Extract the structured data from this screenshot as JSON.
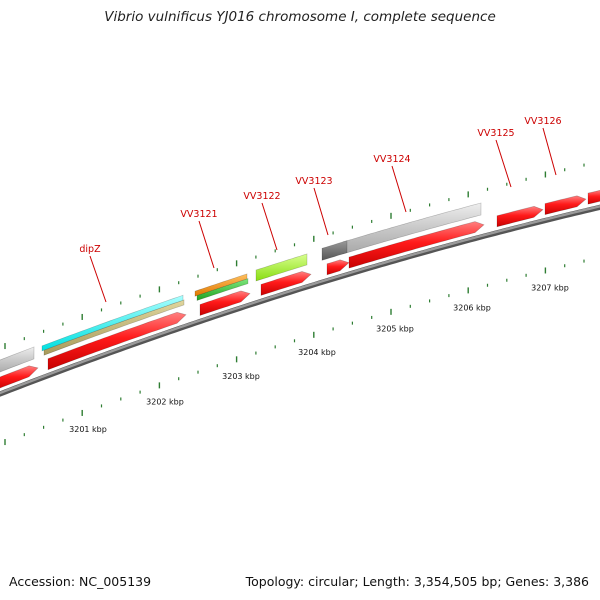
{
  "title": "Vibrio vulnificus YJ016 chromosome I, complete sequence",
  "footer": {
    "accession": "Accession: NC_005139",
    "summary": "Topology: circular; Length: 3,354,505 bp; Genes: 3,386"
  },
  "scale_labels": [
    {
      "text": "3201 kbp"
    },
    {
      "text": "3202 kbp"
    },
    {
      "text": "3203 kbp"
    },
    {
      "text": "3204 kbp"
    },
    {
      "text": "3205 kbp"
    },
    {
      "text": "3206 kbp"
    },
    {
      "text": "3207 kbp"
    }
  ],
  "gene_labels": [
    {
      "text": "dipZ"
    },
    {
      "text": "VV3121"
    },
    {
      "text": "VV3122"
    },
    {
      "text": "VV3123"
    },
    {
      "text": "VV3124"
    },
    {
      "text": "VV3125"
    },
    {
      "text": "VV3126"
    }
  ],
  "colors": {
    "gene": "#ff1a1a",
    "label": "#cc0000",
    "backbone": "#777777",
    "tick": "#2e7d32",
    "cyan": "#33ffff",
    "tan": "#c8bb7a",
    "orange": "#ff9900",
    "green": "#33cc33",
    "lime": "#aaff33",
    "gray": "#c8c8c8",
    "darkgray": "#666666"
  }
}
